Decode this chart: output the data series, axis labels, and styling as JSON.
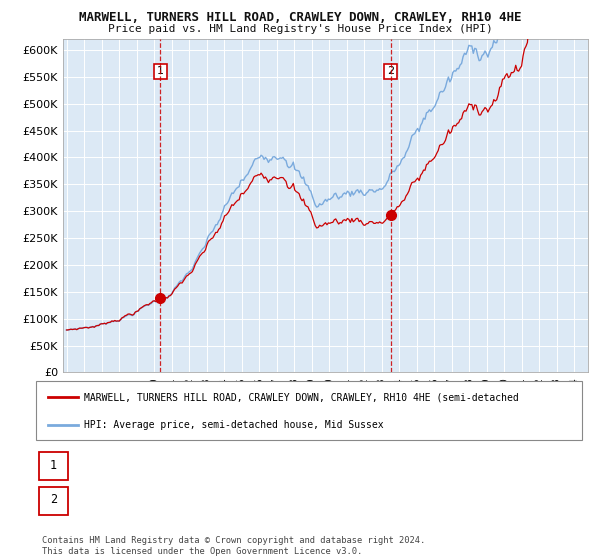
{
  "title": "MARWELL, TURNERS HILL ROAD, CRAWLEY DOWN, CRAWLEY, RH10 4HE",
  "subtitle": "Price paid vs. HM Land Registry's House Price Index (HPI)",
  "background_color": "#dce9f5",
  "hpi_color": "#7aaadd",
  "price_color": "#cc0000",
  "transaction1": {
    "date_num": 2000.37,
    "price": 138000,
    "label": "1"
  },
  "transaction2": {
    "date_num": 2013.52,
    "price": 292000,
    "label": "2"
  },
  "ylim": [
    0,
    620000
  ],
  "xlim": [
    1994.8,
    2024.8
  ],
  "yticks": [
    0,
    50000,
    100000,
    150000,
    200000,
    250000,
    300000,
    350000,
    400000,
    450000,
    500000,
    550000,
    600000
  ],
  "ytick_labels": [
    "£0",
    "£50K",
    "£100K",
    "£150K",
    "£200K",
    "£250K",
    "£300K",
    "£350K",
    "£400K",
    "£450K",
    "£500K",
    "£550K",
    "£600K"
  ],
  "legend_label_red": "MARWELL, TURNERS HILL ROAD, CRAWLEY DOWN, CRAWLEY, RH10 4HE (semi-detached",
  "legend_label_blue": "HPI: Average price, semi-detached house, Mid Sussex",
  "copyright": "Contains HM Land Registry data © Crown copyright and database right 2024.\nThis data is licensed under the Open Government Licence v3.0."
}
